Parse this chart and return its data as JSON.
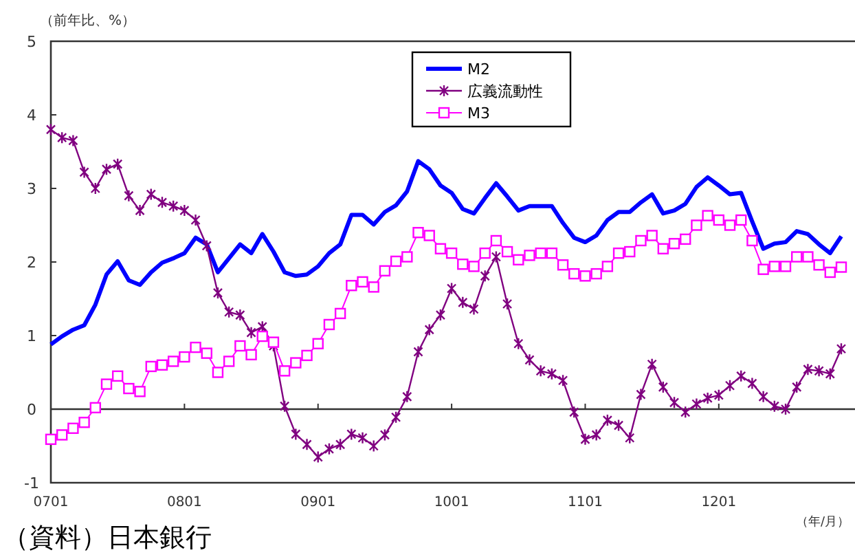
{
  "chart_data": {
    "type": "line",
    "ylabel": "（前年比、%）",
    "xlabel": "（年/月）",
    "annotations": [
      "（資料）日本銀行"
    ],
    "categories": [
      "0701",
      null,
      null,
      null,
      null,
      null,
      null,
      null,
      null,
      null,
      null,
      null,
      "0801",
      null,
      null,
      null,
      null,
      null,
      null,
      null,
      null,
      null,
      null,
      null,
      "0901",
      null,
      null,
      null,
      null,
      null,
      null,
      null,
      null,
      null,
      null,
      null,
      "1001",
      null,
      null,
      null,
      null,
      null,
      null,
      null,
      null,
      null,
      null,
      null,
      "1101",
      null,
      null,
      null,
      null,
      null,
      null,
      null,
      null,
      null,
      null,
      null,
      "1201",
      null,
      null,
      null,
      null,
      null,
      null,
      null,
      null,
      null,
      null,
      null
    ],
    "ref_lines": [
      {
        "axis": "y",
        "value": 0,
        "color": "#333333"
      }
    ],
    "ylim": [
      -1,
      5
    ],
    "yticks": [
      -1,
      0,
      1,
      2,
      3,
      4,
      5
    ],
    "grid": false,
    "legend": "top",
    "series": [
      {
        "name": "M2",
        "color": "#0000ff",
        "marker": "none",
        "values": [
          0.88,
          0.99,
          1.08,
          1.14,
          1.42,
          1.83,
          2.01,
          1.75,
          1.69,
          1.86,
          1.99,
          2.05,
          2.12,
          2.33,
          2.24,
          1.86,
          2.05,
          2.24,
          2.12,
          2.38,
          2.14,
          1.86,
          1.81,
          1.83,
          1.94,
          2.12,
          2.24,
          2.64,
          2.64,
          2.51,
          2.68,
          2.77,
          2.96,
          3.37,
          3.26,
          3.04,
          2.94,
          2.72,
          2.66,
          2.87,
          3.07,
          2.89,
          2.7,
          2.76,
          2.76,
          2.76,
          2.53,
          2.33,
          2.27,
          2.36,
          2.57,
          2.68,
          2.68,
          2.81,
          2.92,
          2.66,
          2.7,
          2.79,
          3.02,
          3.15,
          3.04,
          2.92,
          2.94,
          2.55,
          2.18,
          2.25,
          2.27,
          2.42,
          2.38,
          2.24,
          2.12,
          2.35
        ]
      },
      {
        "name": "広義流動性",
        "color": "#800080",
        "marker": "cross",
        "values": [
          3.8,
          3.69,
          3.65,
          3.22,
          3.0,
          3.26,
          3.33,
          2.9,
          2.7,
          2.92,
          2.81,
          2.76,
          2.7,
          2.57,
          2.22,
          1.58,
          1.32,
          1.28,
          1.04,
          1.12,
          0.86,
          0.04,
          -0.34,
          -0.48,
          -0.65,
          -0.54,
          -0.48,
          -0.34,
          -0.39,
          -0.5,
          -0.35,
          -0.11,
          0.17,
          0.78,
          1.08,
          1.28,
          1.64,
          1.45,
          1.36,
          1.81,
          2.07,
          1.43,
          0.89,
          0.67,
          0.52,
          0.48,
          0.39,
          -0.04,
          -0.41,
          -0.35,
          -0.15,
          -0.22,
          -0.39,
          0.2,
          0.61,
          0.3,
          0.09,
          -0.04,
          0.07,
          0.15,
          0.19,
          0.32,
          0.45,
          0.35,
          0.17,
          0.04,
          0.0,
          0.3,
          0.54,
          0.52,
          0.48,
          0.82
        ]
      },
      {
        "name": "M3",
        "color": "#ff00ff",
        "marker": "square",
        "values": [
          -0.41,
          -0.35,
          -0.26,
          -0.18,
          0.02,
          0.34,
          0.45,
          0.28,
          0.24,
          0.58,
          0.6,
          0.65,
          0.71,
          0.84,
          0.76,
          0.5,
          0.65,
          0.86,
          0.74,
          0.99,
          0.91,
          0.52,
          0.63,
          0.73,
          0.89,
          1.15,
          1.3,
          1.68,
          1.73,
          1.66,
          1.88,
          2.01,
          2.07,
          2.4,
          2.36,
          2.18,
          2.12,
          1.97,
          1.94,
          2.12,
          2.29,
          2.14,
          2.03,
          2.09,
          2.12,
          2.12,
          1.96,
          1.84,
          1.81,
          1.84,
          1.94,
          2.12,
          2.14,
          2.29,
          2.36,
          2.18,
          2.25,
          2.31,
          2.5,
          2.63,
          2.57,
          2.5,
          2.57,
          2.29,
          1.9,
          1.94,
          1.94,
          2.07,
          2.07,
          1.96,
          1.86,
          1.93
        ]
      }
    ]
  }
}
